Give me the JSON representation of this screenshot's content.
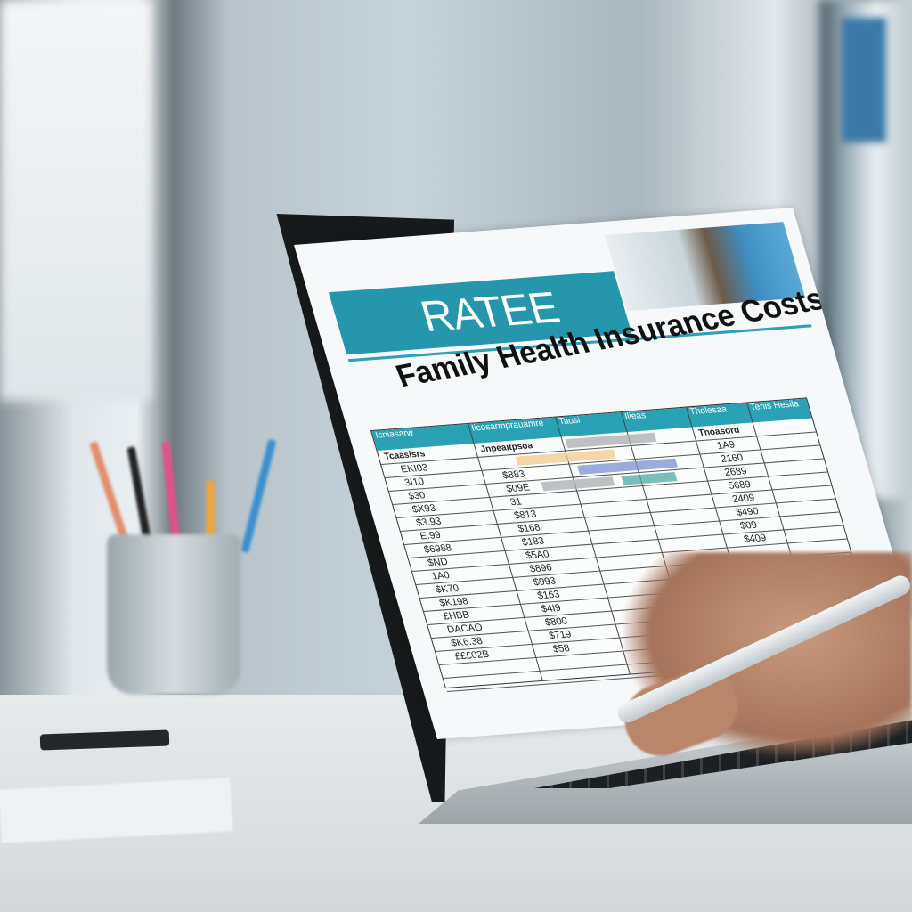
{
  "document": {
    "banner_text": "RATEE",
    "title": "Family Health Insurance Costs",
    "top_headers": [
      "Icniasarw",
      "Iicosarmprauamre",
      "Taosi",
      "Ilieas",
      "Tholesaa",
      "Tenis Hesila"
    ],
    "column_headers": [
      "Tcaasisrs",
      "Jnpeaitpsoa",
      "",
      "",
      "Tnoasord",
      ""
    ],
    "col1": [
      "EKI03",
      "3I10",
      "$30",
      "$X93",
      "$3.93",
      "E.99",
      "$6988",
      "$ND",
      "1A0",
      "$K70",
      "$K198",
      "£HBB",
      "DACAO",
      "$K6.38",
      "£££02B"
    ],
    "col2": [
      "$883",
      "$09E",
      "31",
      "$813",
      "$168",
      "$183",
      "$5A0",
      "$896",
      "$993",
      "$163",
      "$4I9",
      "$800",
      "$719",
      "$58"
    ],
    "col5": [
      "1A9",
      "2160",
      "2689",
      "5689",
      "2409",
      "$490",
      "$09",
      "$409"
    ]
  },
  "colors": {
    "teal": "#2596ab",
    "bar_orange": "#f3c98c",
    "bar_gray": "#a9adb0",
    "bar_blue": "#7d8fd1",
    "bar_teal": "#4fa9a3"
  }
}
